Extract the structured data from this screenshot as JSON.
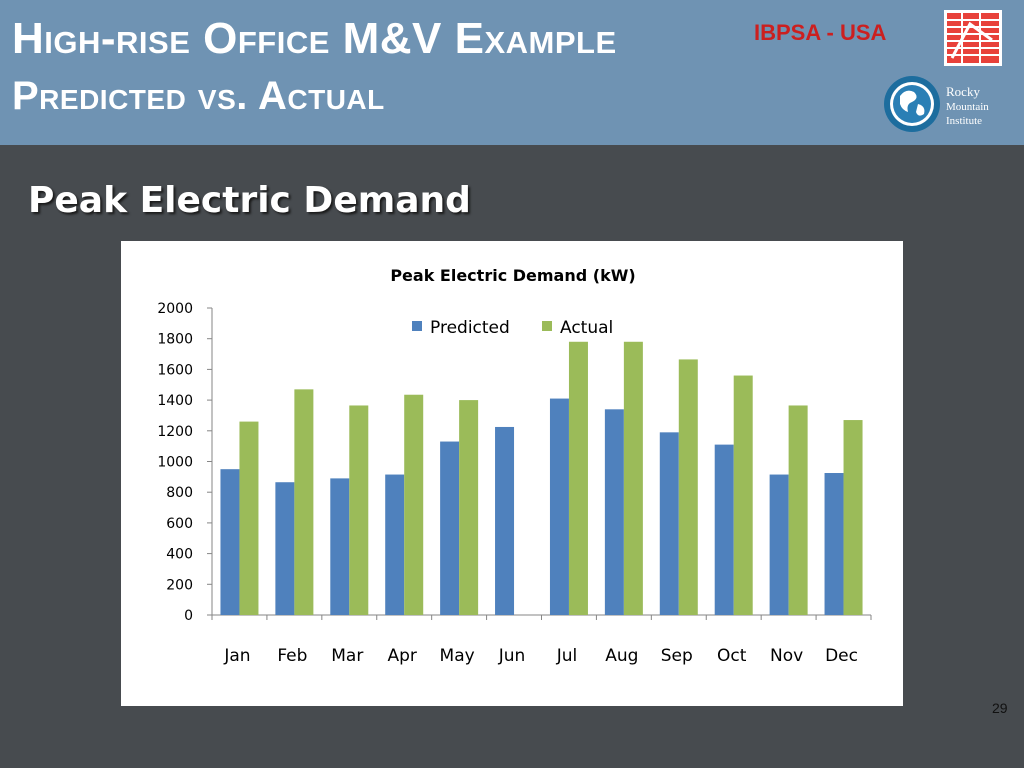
{
  "header": {
    "title_line1": "High-rise Office M&V Example",
    "title_line2": "Predicted vs. Actual",
    "org_tag": "IBPSA - USA",
    "rmi_logo_text": [
      "Rocky",
      "Mountain",
      "Institute"
    ],
    "background_color": "#6f93b3",
    "org_tag_color": "#cc1f1f"
  },
  "slide": {
    "heading": "Peak Electric Demand",
    "page_number": "29",
    "background_color": "#474b4f"
  },
  "chart_data": {
    "type": "bar",
    "title": "Peak Electric Demand (kW)",
    "xlabel": "",
    "ylabel": "",
    "categories": [
      "Jan",
      "Feb",
      "Mar",
      "Apr",
      "May",
      "Jun",
      "Jul",
      "Aug",
      "Sep",
      "Oct",
      "Nov",
      "Dec"
    ],
    "series": [
      {
        "name": "Predicted",
        "color": "#4f81bd",
        "values": [
          950,
          865,
          890,
          915,
          1130,
          1225,
          1410,
          1340,
          1190,
          1110,
          915,
          925
        ]
      },
      {
        "name": "Actual",
        "color": "#9bbb59",
        "values": [
          1260,
          1470,
          1365,
          1435,
          1400,
          null,
          1780,
          1780,
          1665,
          1560,
          1365,
          1270
        ]
      }
    ],
    "ylim": [
      0,
      2000
    ],
    "yticks": [
      0,
      200,
      400,
      600,
      800,
      1000,
      1200,
      1400,
      1600,
      1800,
      2000
    ],
    "grid": false,
    "legend_position": "top"
  }
}
